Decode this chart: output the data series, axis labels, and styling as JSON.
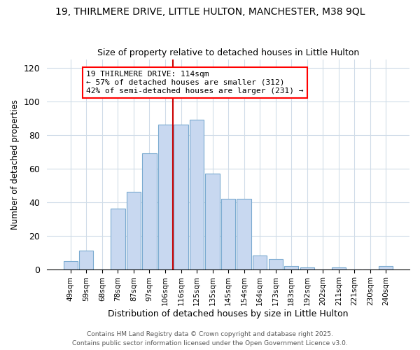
{
  "title": "19, THIRLMERE DRIVE, LITTLE HULTON, MANCHESTER, M38 9QL",
  "subtitle": "Size of property relative to detached houses in Little Hulton",
  "xlabel": "Distribution of detached houses by size in Little Hulton",
  "ylabel": "Number of detached properties",
  "categories": [
    "49sqm",
    "59sqm",
    "68sqm",
    "78sqm",
    "87sqm",
    "97sqm",
    "106sqm",
    "116sqm",
    "125sqm",
    "135sqm",
    "145sqm",
    "154sqm",
    "164sqm",
    "173sqm",
    "183sqm",
    "192sqm",
    "202sqm",
    "211sqm",
    "221sqm",
    "230sqm",
    "240sqm"
  ],
  "values": [
    5,
    11,
    0,
    36,
    46,
    69,
    86,
    86,
    89,
    57,
    42,
    42,
    8,
    6,
    2,
    1,
    0,
    1,
    0,
    0,
    2
  ],
  "bar_color": "#c8d8f0",
  "bar_edge_color": "#7aaad0",
  "vline_color": "#cc0000",
  "vline_x": 7,
  "annotation_text": "19 THIRLMERE DRIVE: 114sqm\n← 57% of detached houses are smaller (312)\n42% of semi-detached houses are larger (231) →",
  "annotation_box_color": "white",
  "annotation_box_edge": "red",
  "ylim": [
    0,
    125
  ],
  "yticks": [
    0,
    20,
    40,
    60,
    80,
    100,
    120
  ],
  "footnote1": "Contains HM Land Registry data © Crown copyright and database right 2025.",
  "footnote2": "Contains public sector information licensed under the Open Government Licence v3.0.",
  "background_color": "#ffffff",
  "grid_color": "#d0dce8",
  "title_fontsize": 10,
  "subtitle_fontsize": 9
}
